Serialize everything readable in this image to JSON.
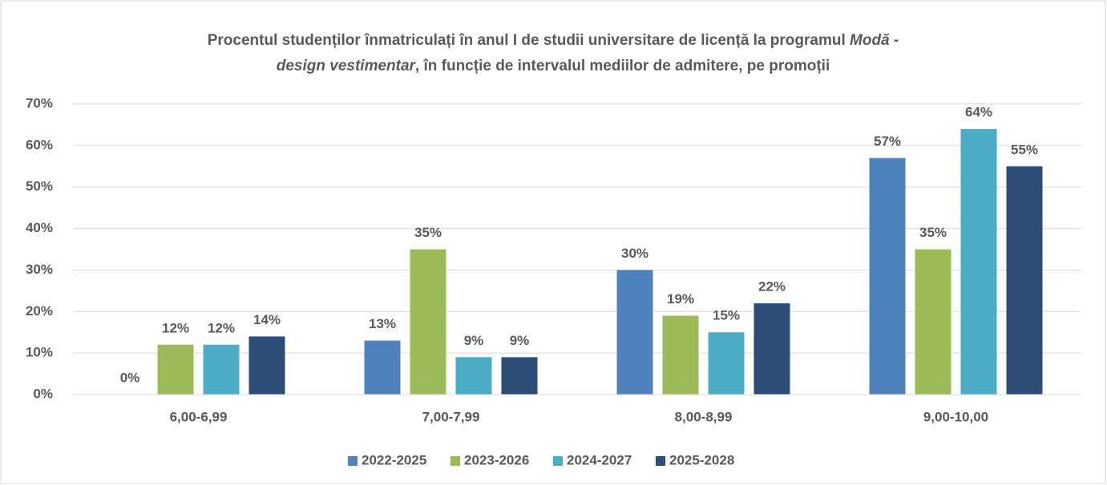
{
  "chart_data": {
    "type": "bar",
    "title": [
      "Procentul studenților înmatriculați în anul I de studii universitare de licență la programul ",
      "Modă -",
      "design vestimentar",
      ", în funcție de intervalul mediilor de admitere, pe promoții"
    ],
    "categories": [
      "6,00-6,99",
      "7,00-7,99",
      "8,00-8,99",
      "9,00-10,00"
    ],
    "series": [
      {
        "name": "2022-2025",
        "color": "#4f81bd",
        "values": [
          0,
          13,
          30,
          57
        ],
        "value_labels": [
          "0%",
          "13%",
          "30%",
          "57%"
        ]
      },
      {
        "name": "2023-2026",
        "color": "#9bbb59",
        "values": [
          12,
          35,
          19,
          35
        ],
        "value_labels": [
          "12%",
          "35%",
          "19%",
          "35%"
        ]
      },
      {
        "name": "2024-2027",
        "color": "#4bacc6",
        "values": [
          12,
          9,
          15,
          64
        ],
        "value_labels": [
          "12%",
          "9%",
          "15%",
          "64%"
        ]
      },
      {
        "name": "2025-2028",
        "color": "#2c4d75",
        "values": [
          14,
          9,
          22,
          55
        ],
        "value_labels": [
          "14%",
          "9%",
          "22%",
          "55%"
        ]
      }
    ],
    "ylim": [
      0,
      70
    ],
    "yticks": [
      {
        "value": 0,
        "label": "0%"
      },
      {
        "value": 10,
        "label": "10%"
      },
      {
        "value": 20,
        "label": "20%"
      },
      {
        "value": 30,
        "label": "30%"
      },
      {
        "value": 40,
        "label": "40%"
      },
      {
        "value": 50,
        "label": "50%"
      },
      {
        "value": 60,
        "label": "60%"
      },
      {
        "value": 70,
        "label": "70%"
      }
    ],
    "grid": true,
    "legend": "bottom"
  }
}
